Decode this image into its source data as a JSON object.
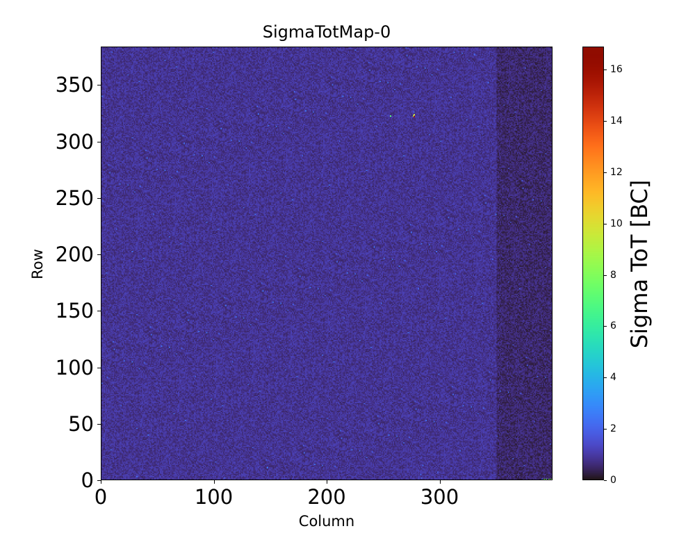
{
  "chart_data": {
    "type": "heatmap",
    "title": "SigmaTotMap-0",
    "xlabel": "Column",
    "ylabel": "Row",
    "colorbar_label": "Sigma ToT [BC]",
    "colormap": "turbo",
    "columns": 400,
    "rows": 384,
    "xlim": [
      0,
      400
    ],
    "ylim": [
      0,
      384
    ],
    "clim": [
      0,
      16.9
    ],
    "xticks": [
      "0",
      "100",
      "200",
      "300"
    ],
    "xtick_values": [
      0,
      100,
      200,
      300
    ],
    "yticks": [
      "0",
      "50",
      "100",
      "150",
      "200",
      "250",
      "300",
      "350"
    ],
    "ytick_values": [
      0,
      50,
      100,
      150,
      200,
      250,
      300,
      350
    ],
    "cticks": [
      "0",
      "2",
      "4",
      "6",
      "8",
      "10",
      "12",
      "14",
      "16"
    ],
    "ctick_values": [
      0,
      2,
      4,
      6,
      8,
      10,
      12,
      14,
      16
    ],
    "background_mean": 0.8,
    "background_mean_right_edge": 0.5,
    "hot_pixels": [
      {
        "col": 256,
        "row": 322,
        "value": 7
      },
      {
        "col": 277,
        "row": 323,
        "value": 10
      },
      {
        "col": 276,
        "row": 322,
        "value": 9
      },
      {
        "col": 277,
        "row": 321,
        "value": 16
      },
      {
        "col": 392,
        "row": 0,
        "value": 8
      },
      {
        "col": 394,
        "row": 0,
        "value": 8
      },
      {
        "col": 396,
        "row": 0,
        "value": 8
      },
      {
        "col": 398,
        "row": 0,
        "value": 8
      }
    ]
  }
}
